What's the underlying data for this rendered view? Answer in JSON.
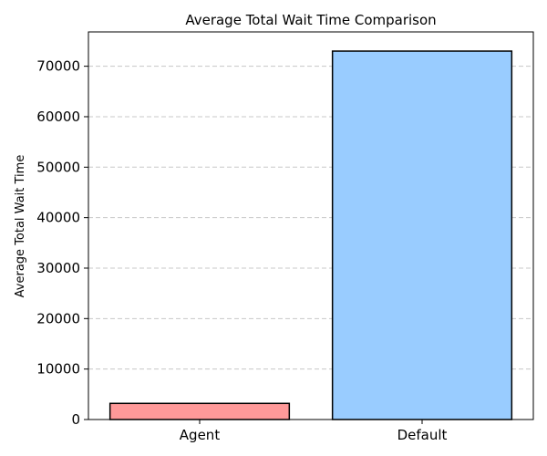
{
  "chart_data": {
    "type": "bar",
    "title": "Average Total Wait Time Comparison",
    "xlabel": "",
    "ylabel": "Average Total Wait Time",
    "categories": [
      "Agent",
      "Default"
    ],
    "values": [
      3200,
      73000
    ],
    "colors": [
      "#ff9999",
      "#99ccff"
    ],
    "edgecolor": "#000000",
    "ylim": [
      0,
      76800
    ],
    "yticks": [
      0,
      10000,
      20000,
      30000,
      40000,
      50000,
      60000,
      70000
    ],
    "ytick_labels": [
      "0",
      "10000",
      "20000",
      "30000",
      "40000",
      "50000",
      "60000",
      "70000"
    ],
    "grid": "y-dashed",
    "grid_color": "#c8c8c8"
  }
}
